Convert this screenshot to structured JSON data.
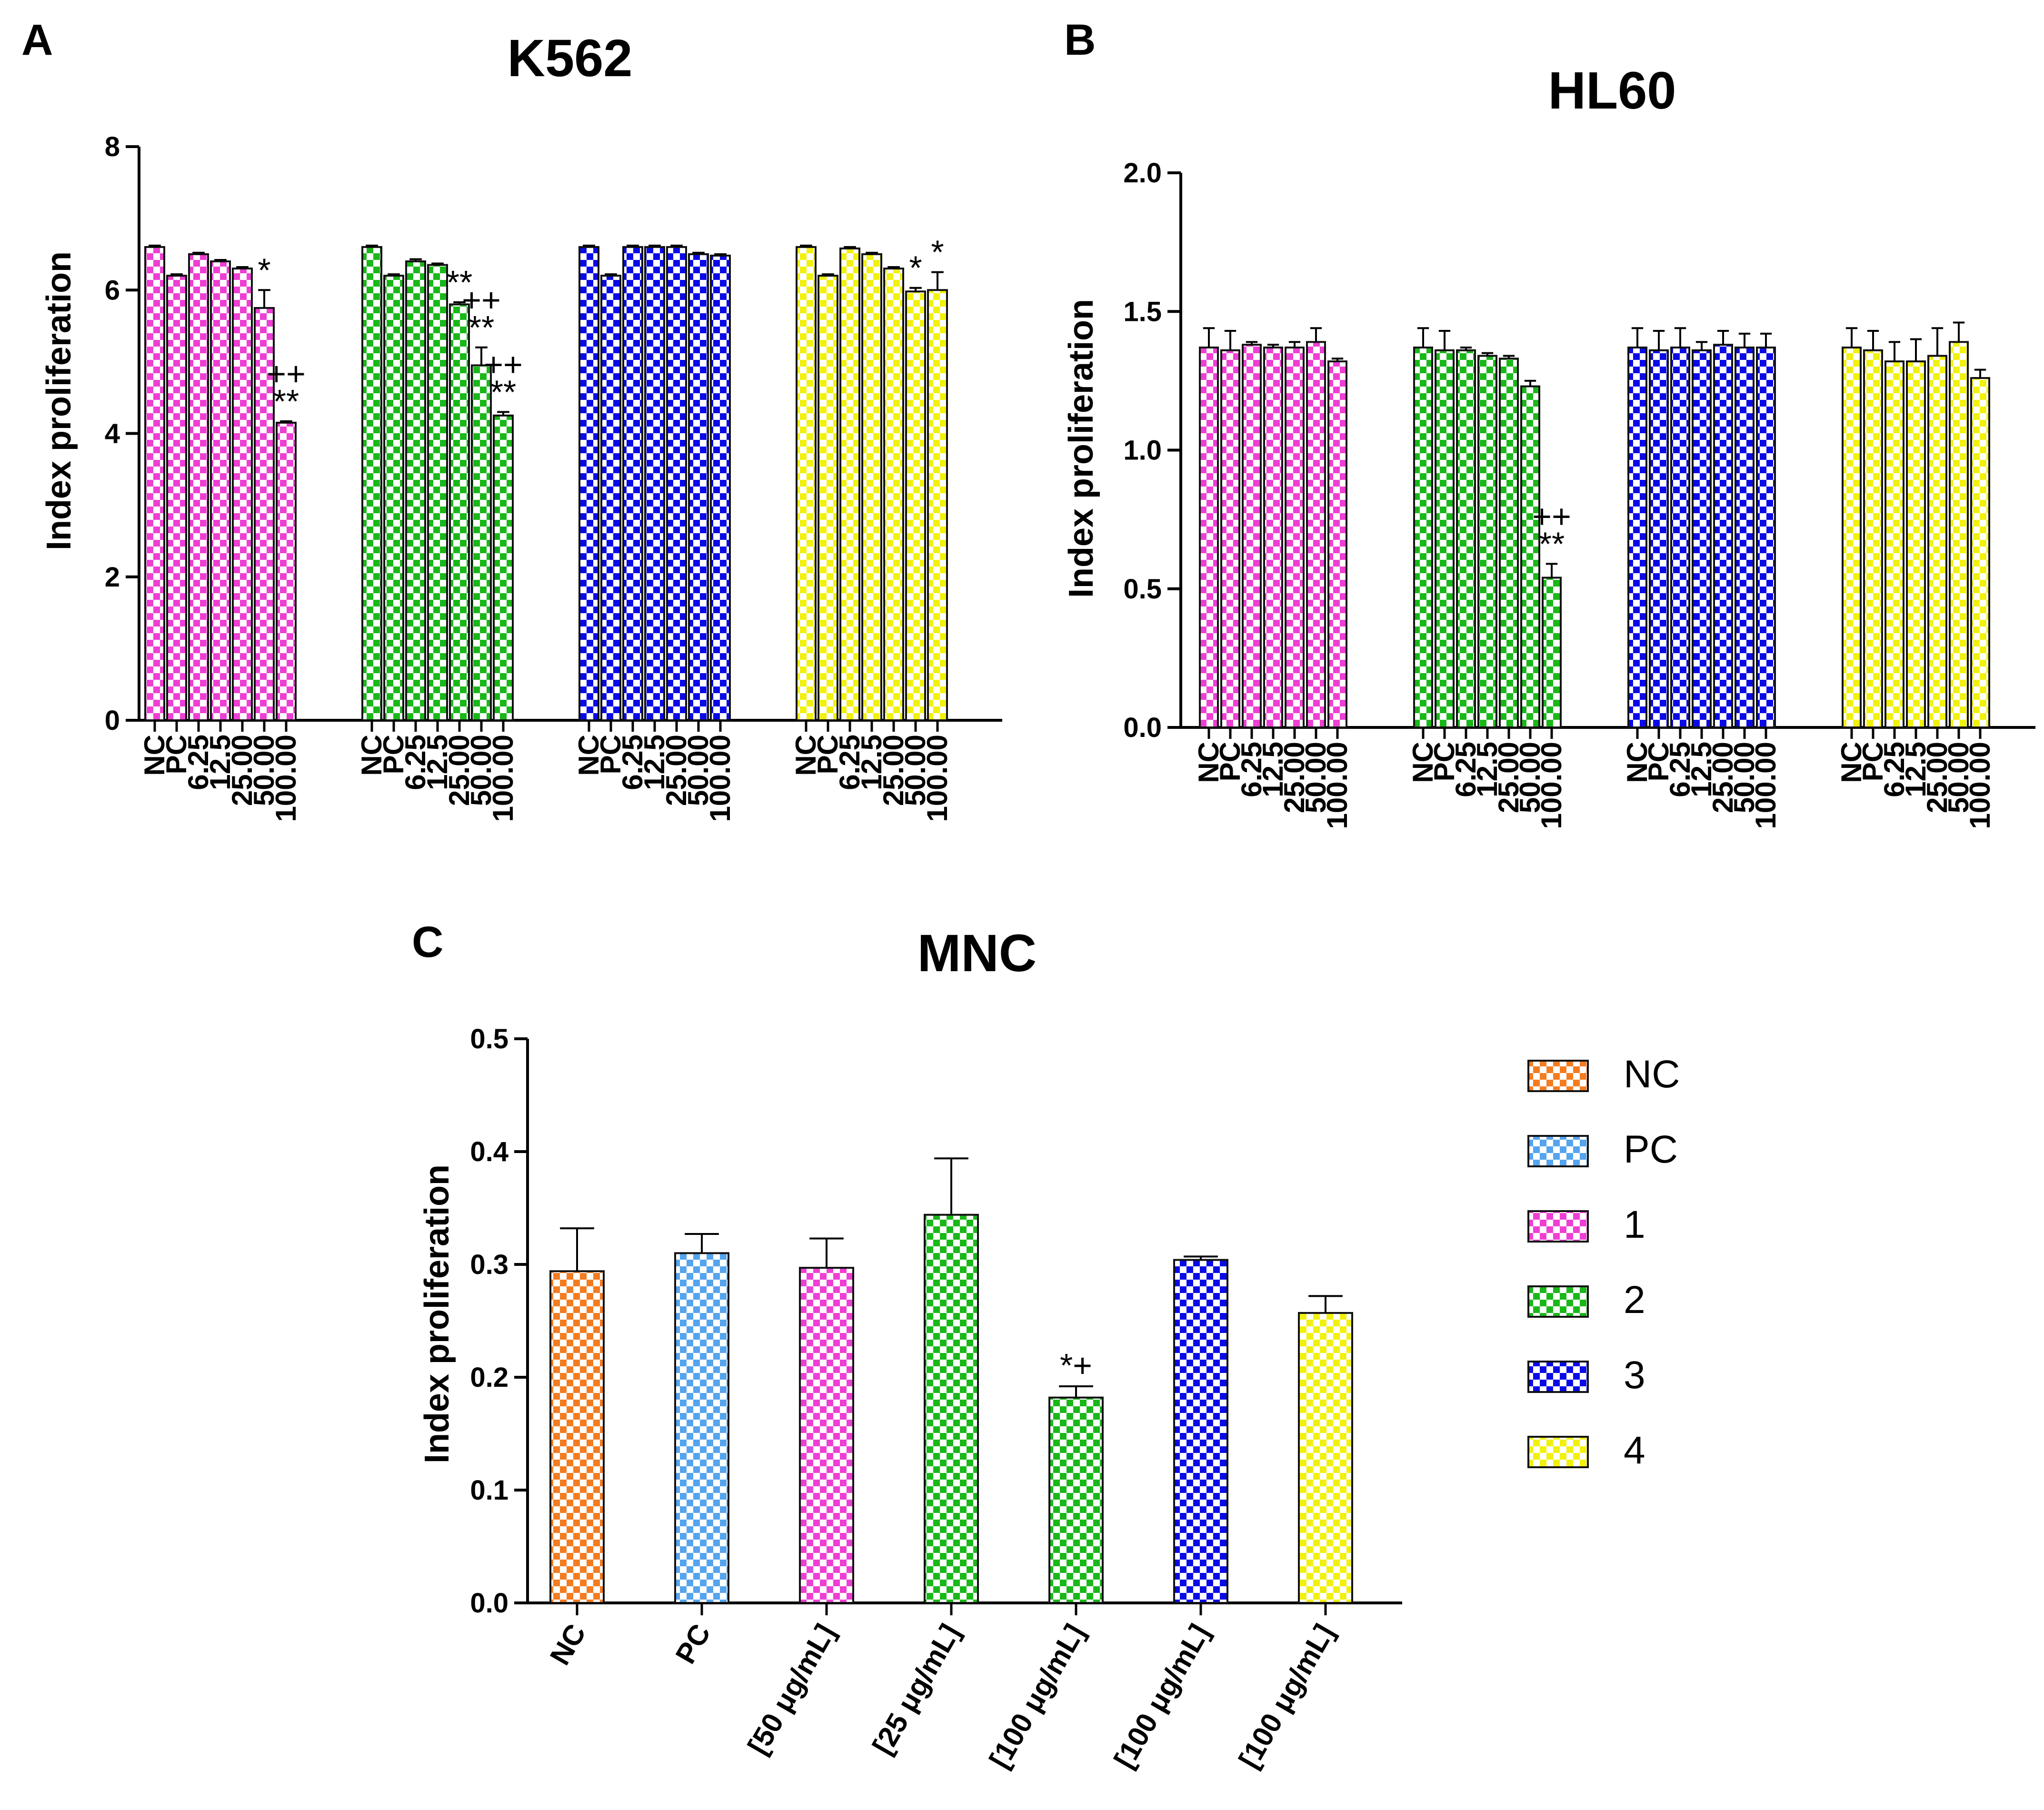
{
  "colors": {
    "orange": "#f47c20",
    "lightblue": "#55a4ee",
    "pink": "#ee3fd4",
    "green": "#19b819",
    "blue": "#0a0ae6",
    "yellow": "#f1f10d"
  },
  "legend": [
    {
      "label": "NC",
      "color": "orange"
    },
    {
      "label": "PC",
      "color": "lightblue"
    },
    {
      "label": "1",
      "color": "pink"
    },
    {
      "label": "2",
      "color": "green"
    },
    {
      "label": "3",
      "color": "blue"
    },
    {
      "label": "4",
      "color": "yellow"
    }
  ],
  "chart_data": [
    {
      "panel": "A",
      "type": "bar",
      "title": "K562",
      "ylabel": "Index proliferation",
      "ylim": [
        0,
        8
      ],
      "yticks": [
        "0",
        "2",
        "4",
        "6",
        "8"
      ],
      "categories": [
        "NC",
        "PC",
        "6.25",
        "12.5",
        "25.00",
        "50.00",
        "100.00"
      ],
      "series": [
        {
          "name": "1",
          "color": "pink",
          "values": [
            6.6,
            6.2,
            6.5,
            6.4,
            6.3,
            5.75,
            4.15
          ],
          "errors": [
            0.02,
            0.02,
            0.02,
            0.02,
            0.02,
            0.25,
            0.02
          ],
          "sig": [
            "",
            "",
            "",
            "",
            "",
            "*",
            "++\n**"
          ]
        },
        {
          "name": "2",
          "color": "green",
          "values": [
            6.6,
            6.2,
            6.4,
            6.35,
            5.8,
            4.95,
            4.25
          ],
          "errors": [
            0.02,
            0.02,
            0.03,
            0.02,
            0.03,
            0.25,
            0.05
          ],
          "sig": [
            "",
            "",
            "",
            "",
            "**",
            "++\n**",
            "++\n**"
          ]
        },
        {
          "name": "3",
          "color": "blue",
          "values": [
            6.6,
            6.2,
            6.6,
            6.6,
            6.6,
            6.5,
            6.48
          ],
          "errors": [
            0.02,
            0.02,
            0.02,
            0.02,
            0.02,
            0.02,
            0.02
          ],
          "sig": [
            "",
            "",
            "",
            "",
            "",
            "",
            ""
          ]
        },
        {
          "name": "4",
          "color": "yellow",
          "values": [
            6.6,
            6.2,
            6.58,
            6.5,
            6.3,
            5.98,
            6.0
          ],
          "errors": [
            0.02,
            0.02,
            0.02,
            0.02,
            0.02,
            0.05,
            0.25
          ],
          "sig": [
            "",
            "",
            "",
            "",
            "",
            "*",
            "*"
          ]
        }
      ]
    },
    {
      "panel": "B",
      "type": "bar",
      "title": "HL60",
      "ylabel": "Index proliferation",
      "ylim": [
        0,
        2.0
      ],
      "yticks": [
        "0.0",
        "0.5",
        "1.0",
        "1.5",
        "2.0"
      ],
      "categories": [
        "NC",
        "PC",
        "6.25",
        "12.5",
        "25.00",
        "50.00",
        "100.00"
      ],
      "series": [
        {
          "name": "1",
          "color": "pink",
          "values": [
            1.37,
            1.36,
            1.38,
            1.37,
            1.37,
            1.39,
            1.32
          ],
          "errors": [
            0.07,
            0.07,
            0.01,
            0.01,
            0.02,
            0.05,
            0.01
          ],
          "sig": [
            "",
            "",
            "",
            "",
            "",
            "",
            ""
          ]
        },
        {
          "name": "2",
          "color": "green",
          "values": [
            1.37,
            1.36,
            1.36,
            1.34,
            1.33,
            1.23,
            0.54
          ],
          "errors": [
            0.07,
            0.07,
            0.01,
            0.01,
            0.01,
            0.02,
            0.05
          ],
          "sig": [
            "",
            "",
            "",
            "",
            "",
            "",
            "++\n**"
          ]
        },
        {
          "name": "3",
          "color": "blue",
          "values": [
            1.37,
            1.36,
            1.37,
            1.36,
            1.38,
            1.37,
            1.37
          ],
          "errors": [
            0.07,
            0.07,
            0.07,
            0.03,
            0.05,
            0.05,
            0.05
          ],
          "sig": [
            "",
            "",
            "",
            "",
            "",
            "",
            ""
          ]
        },
        {
          "name": "4",
          "color": "yellow",
          "values": [
            1.37,
            1.36,
            1.32,
            1.32,
            1.34,
            1.39,
            1.26
          ],
          "errors": [
            0.07,
            0.07,
            0.07,
            0.08,
            0.1,
            0.07,
            0.03
          ],
          "sig": [
            "",
            "",
            "",
            "",
            "",
            "",
            ""
          ]
        }
      ]
    },
    {
      "panel": "C",
      "type": "bar",
      "title": "MNC",
      "ylabel": "Index proliferation",
      "ylim": [
        0,
        0.5
      ],
      "yticks": [
        "0.0",
        "0.1",
        "0.2",
        "0.3",
        "0.4",
        "0.5"
      ],
      "categories": [
        "NC",
        "PC",
        "[50 μg/mL]",
        "[25 μg/mL]",
        "[100 μg/mL]",
        "[100 μg/mL]",
        "[100 μg/mL]"
      ],
      "colors": [
        "orange",
        "lightblue",
        "pink",
        "green",
        "green",
        "blue",
        "yellow"
      ],
      "values": [
        0.294,
        0.31,
        0.297,
        0.344,
        0.182,
        0.304,
        0.257
      ],
      "errors": [
        0.038,
        0.017,
        0.026,
        0.05,
        0.01,
        0.003,
        0.015
      ],
      "sig": [
        "",
        "",
        "",
        "",
        "*+",
        "",
        ""
      ]
    }
  ]
}
